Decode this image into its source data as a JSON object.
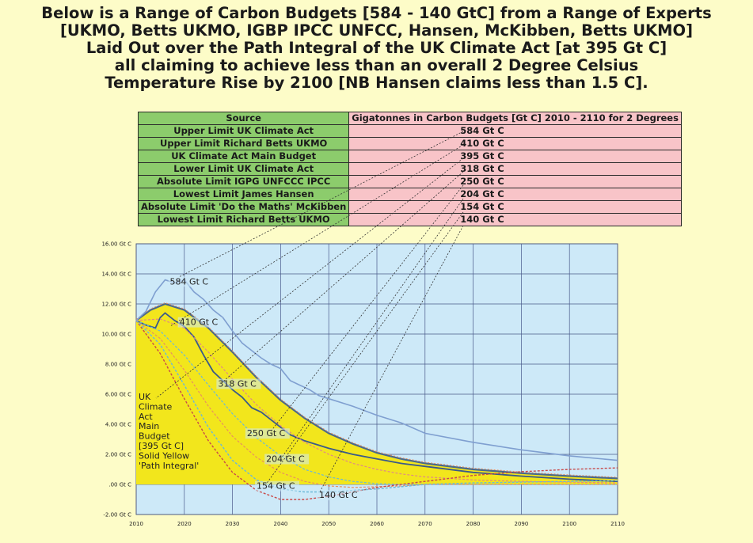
{
  "title_lines": [
    "Below is a Range of Carbon Budgets [584 - 140 GtC] from a Range of Experts",
    "[UKMO, Betts UKMO, IGBP IPCC UNFCC, Hansen, McKibben, Betts UKMO]",
    "Laid Out over the Path Integral of the UK Climate Act [at 395 Gt C]",
    "all claiming to achieve less than an overall 2 Degree Celsius",
    "Temperature Rise by 2100 [NB Hansen claims less than 1.5 C]."
  ],
  "table": {
    "header_source": "Source",
    "header_budget": "Gigatonnes in Carbon Budgets [Gt C] 2010 - 2110 for 2 Degrees",
    "rows": [
      {
        "source": "Upper Limit UK Climate Act",
        "budget": "584 Gt C"
      },
      {
        "source": "Upper Limit Richard Betts UKMO",
        "budget": "410 Gt C"
      },
      {
        "source": "UK Climate Act Main Budget",
        "budget": "395 Gt C"
      },
      {
        "source": "Lower Limit UK Climate Act",
        "budget": "318 Gt C"
      },
      {
        "source": "Absolute Limit IGPG UNFCCC IPCC",
        "budget": "250 Gt C"
      },
      {
        "source": "Lowest Limit James Hansen",
        "budget": "204 Gt C"
      },
      {
        "source": "Absolute Limit 'Do the Maths' McKibben",
        "budget": "154 Gt C"
      },
      {
        "source": "Lowest Limit Richard Betts UKMO",
        "budget": "140 Gt C"
      }
    ]
  },
  "annotation_lines": [
    "UK",
    "Climate",
    "Act",
    "Main",
    "Budget",
    "[395 Gt C]",
    "Solid Yellow",
    "'Path Integral'"
  ],
  "colors": {
    "plot_bg": "#cde9f8",
    "grid": "#4a5a8a",
    "area_fill": "#f2e61c",
    "area_edge": "#4a6a8a",
    "curve_584": "#7f9fd0",
    "curve_410": "#3a5a8a",
    "orange": "#e89060",
    "red": "#c84a4a",
    "cyan": "#6ab8d8",
    "pink": "#e08888"
  },
  "chart_data": {
    "type": "line",
    "xlim": [
      2010,
      2110
    ],
    "ylim": [
      -2,
      16
    ],
    "x_ticks": [
      2010,
      2020,
      2030,
      2040,
      2050,
      2060,
      2070,
      2080,
      2090,
      2100,
      2110
    ],
    "x_tick_labels": [
      "2010",
      "2020",
      "2030",
      "2040",
      "2050",
      "2060",
      "2070",
      "2080",
      "2090",
      "2100",
      "2110"
    ],
    "y_ticks": [
      16,
      14,
      12,
      10,
      8,
      6,
      4,
      2,
      0,
      -2
    ],
    "y_tick_labels": [
      "16.00 Gt C",
      "14.00 Gt C",
      "12.00 Gt C",
      "10.00 Gt C",
      "8.00 Gt C",
      "6.00 Gt C",
      "4.00 Gt C",
      "2.00 Gt C",
      ".00 Gt C",
      "-2.00 Gt C"
    ],
    "grid": true,
    "area": {
      "name": "395 Gt C",
      "x": [
        2010,
        2013,
        2016,
        2020,
        2025,
        2030,
        2035,
        2040,
        2045,
        2050,
        2055,
        2060,
        2065,
        2070,
        2080,
        2090,
        2100,
        2110
      ],
      "y": [
        10.9,
        11.6,
        12.0,
        11.6,
        10.4,
        8.8,
        7.1,
        5.6,
        4.4,
        3.4,
        2.7,
        2.1,
        1.7,
        1.4,
        1.0,
        0.75,
        0.55,
        0.4
      ]
    },
    "series": [
      {
        "name": "584 Gt C",
        "style": "solid",
        "x": [
          2010,
          2012,
          2014,
          2016,
          2018,
          2020,
          2022,
          2024,
          2026,
          2028,
          2030,
          2032,
          2034,
          2036,
          2038,
          2040,
          2042,
          2044,
          2046,
          2048,
          2050,
          2055,
          2060,
          2065,
          2070,
          2080,
          2090,
          2100,
          2110
        ],
        "y": [
          10.9,
          11.5,
          12.8,
          13.6,
          13.4,
          13.6,
          12.8,
          12.3,
          11.6,
          11.1,
          10.2,
          9.4,
          8.9,
          8.4,
          8.0,
          7.7,
          6.9,
          6.6,
          6.3,
          5.9,
          5.7,
          5.2,
          4.6,
          4.1,
          3.4,
          2.8,
          2.3,
          1.9,
          1.6
        ]
      },
      {
        "name": "410 Gt C",
        "style": "solid",
        "x": [
          2010,
          2012,
          2014,
          2015,
          2016,
          2018,
          2020,
          2022,
          2024,
          2026,
          2028,
          2030,
          2032,
          2034,
          2036,
          2038,
          2040,
          2042,
          2045,
          2050,
          2055,
          2060,
          2065,
          2070,
          2080,
          2090,
          2100,
          2110
        ],
        "y": [
          10.9,
          10.6,
          10.4,
          11.1,
          11.4,
          10.9,
          10.5,
          9.8,
          8.6,
          7.5,
          6.9,
          6.3,
          5.8,
          5.1,
          4.8,
          4.3,
          3.8,
          3.3,
          2.9,
          2.4,
          2.0,
          1.7,
          1.4,
          1.2,
          0.8,
          0.55,
          0.35,
          0.2
        ]
      },
      {
        "name": "318 Gt C",
        "style": "dashed",
        "x": [
          2010,
          2015,
          2020,
          2025,
          2030,
          2035,
          2040,
          2045,
          2050,
          2055,
          2060,
          2065,
          2070,
          2080,
          2090,
          2100,
          2110
        ],
        "y": [
          10.9,
          11.0,
          10.4,
          8.8,
          7.0,
          5.3,
          3.9,
          2.8,
          2.0,
          1.4,
          1.0,
          0.7,
          0.5,
          0.3,
          0.2,
          0.15,
          0.1
        ]
      },
      {
        "name": "250 Gt C",
        "style": "dashed",
        "x": [
          2010,
          2015,
          2020,
          2025,
          2030,
          2035,
          2040,
          2045,
          2050,
          2055,
          2060,
          2065,
          2070,
          2080,
          2090,
          2100,
          2110
        ],
        "y": [
          10.9,
          10.2,
          8.6,
          6.6,
          4.7,
          3.1,
          1.9,
          1.0,
          0.5,
          0.2,
          0.05,
          0.0,
          0.0,
          0.0,
          0.0,
          0.0,
          0.0
        ]
      },
      {
        "name": "204 Gt C",
        "style": "dashed",
        "x": [
          2010,
          2015,
          2020,
          2025,
          2030,
          2035,
          2040,
          2045,
          2050,
          2055,
          2060,
          2065,
          2070,
          2080,
          2090,
          2100,
          2110
        ],
        "y": [
          10.9,
          9.7,
          7.6,
          5.2,
          3.2,
          1.8,
          0.8,
          0.2,
          -0.1,
          -0.2,
          -0.15,
          -0.1,
          0.0,
          0.0,
          0.0,
          0.0,
          0.0
        ]
      },
      {
        "name": "154 Gt C",
        "style": "dashed",
        "x": [
          2010,
          2015,
          2020,
          2025,
          2030,
          2035,
          2040,
          2045,
          2050,
          2055,
          2060,
          2065,
          2070,
          2075,
          2080,
          2090,
          2100,
          2110
        ],
        "y": [
          10.9,
          8.7,
          5.7,
          2.9,
          0.8,
          -0.4,
          -1.0,
          -1.0,
          -0.8,
          -0.5,
          -0.2,
          0.0,
          0.2,
          0.4,
          0.6,
          0.85,
          1.0,
          1.1
        ]
      },
      {
        "name": "140 Gt C",
        "style": "dashed",
        "x": [
          2010,
          2015,
          2020,
          2025,
          2030,
          2035,
          2040,
          2045,
          2050,
          2055,
          2060,
          2065,
          2070,
          2080,
          2090,
          2100,
          2110
        ],
        "y": [
          10.9,
          9.3,
          6.6,
          3.8,
          1.6,
          0.3,
          -0.3,
          -0.5,
          -0.5,
          -0.4,
          -0.3,
          -0.15,
          0.0,
          0.1,
          0.15,
          0.2,
          0.25
        ]
      }
    ]
  }
}
